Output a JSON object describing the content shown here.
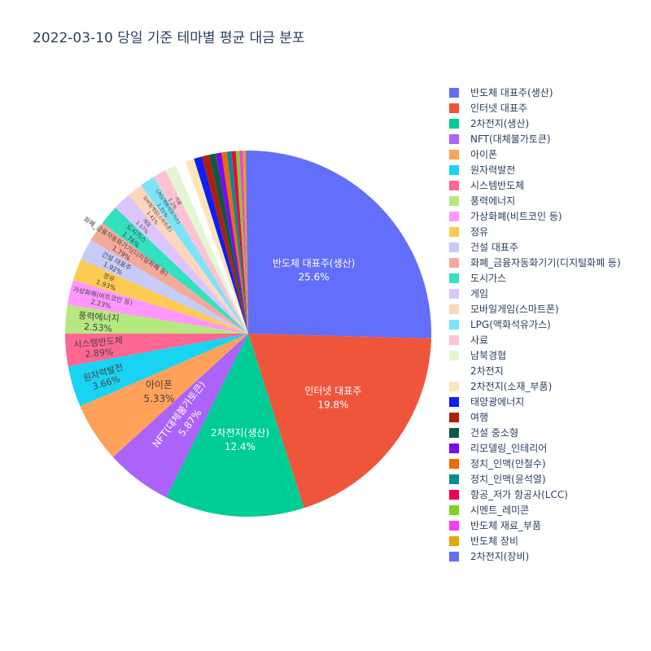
{
  "chart_data": {
    "type": "pie",
    "title": "2022-03-10 당일 기준 테마별 평균 대금 분포",
    "legend_position": "right",
    "slices": [
      {
        "label": "반도체 대표주(생산)",
        "value": 25.6,
        "display": "25.6%",
        "color": "#636efa"
      },
      {
        "label": "인터넷 대표주",
        "value": 19.8,
        "display": "19.8%",
        "color": "#ef553b"
      },
      {
        "label": "2차전지(생산)",
        "value": 12.4,
        "display": "12.4%",
        "color": "#00cc96"
      },
      {
        "label": "NFT(대체불가토큰)",
        "value": 5.87,
        "display": "5.87%",
        "color": "#ab63fa"
      },
      {
        "label": "아이폰",
        "value": 5.33,
        "display": "5.33%",
        "color": "#ffa15a"
      },
      {
        "label": "원자력발전",
        "value": 3.66,
        "display": "3.66%",
        "color": "#19d3f3"
      },
      {
        "label": "시스템반도체",
        "value": 2.89,
        "display": "2.89%",
        "color": "#ff6692"
      },
      {
        "label": "풍력에너지",
        "value": 2.53,
        "display": "2.53%",
        "color": "#b6e880"
      },
      {
        "label": "가상화폐(비트코인 등)",
        "value": 2.23,
        "display": "2.23%",
        "color": "#ff97ff"
      },
      {
        "label": "정유",
        "value": 1.93,
        "display": "1.93%",
        "color": "#fecb52"
      },
      {
        "label": "건설 대표주",
        "value": 1.92,
        "display": "1.92%",
        "color": "#c6cbf9"
      },
      {
        "label": "화폐_금융자동화기기(디지털화폐 등)",
        "value": 1.79,
        "display": "1.79%",
        "color": "#f4aa9b"
      },
      {
        "label": "도시가스",
        "value": 1.76,
        "display": "1.76%",
        "color": "#33e0c0"
      },
      {
        "label": "게임",
        "value": 1.57,
        "display": "1.57%",
        "color": "#dcc5fc"
      },
      {
        "label": "모바일게임(스마트폰)",
        "value": 1.41,
        "display": "1.41%",
        "color": "#fdd7bd"
      },
      {
        "label": "LPG(액화석유가스)",
        "value": 1.31,
        "display": "1.31%",
        "color": "#7be4f8"
      },
      {
        "label": "사료",
        "value": 1.2,
        "display": "1.2%",
        "color": "#fdc2d4"
      },
      {
        "label": "남북경협",
        "value": 1.0,
        "display": "",
        "color": "#e2f6d2"
      },
      {
        "label": "2차전지",
        "value": 0.9,
        "display": "",
        "color": "#ffffff"
      },
      {
        "label": "2차전지(소재_부품)",
        "value": 0.8,
        "display": "",
        "color": "#fde5b7"
      },
      {
        "label": "태양광에너지",
        "value": 0.72,
        "display": "",
        "color": "#0d1ff2"
      },
      {
        "label": "여행",
        "value": 0.65,
        "display": "",
        "color": "#b01e0a"
      },
      {
        "label": "건설 중소형",
        "value": 0.58,
        "display": "",
        "color": "#0a5c40"
      },
      {
        "label": "리모델링_인테리어",
        "value": 0.52,
        "display": "",
        "color": "#7a0af2"
      },
      {
        "label": "정치_인맥(안철수)",
        "value": 0.47,
        "display": "",
        "color": "#ef6a00"
      },
      {
        "label": "정치_인맥(윤석열)",
        "value": 0.42,
        "display": "",
        "color": "#0b8a92"
      },
      {
        "label": "항공_저가 항공사(LCC)",
        "value": 0.37,
        "display": "",
        "color": "#f0004d"
      },
      {
        "label": "시멘트_레미콘",
        "value": 0.33,
        "display": "",
        "color": "#7ed321"
      },
      {
        "label": "반도체 재료_부품",
        "value": 0.29,
        "display": "",
        "color": "#f53df2"
      },
      {
        "label": "반도체 장비",
        "value": 0.25,
        "display": "",
        "color": "#e5a50a"
      },
      {
        "label": "2차전지(장비)",
        "value": 0.22,
        "display": "",
        "color": "#636efa"
      }
    ]
  }
}
